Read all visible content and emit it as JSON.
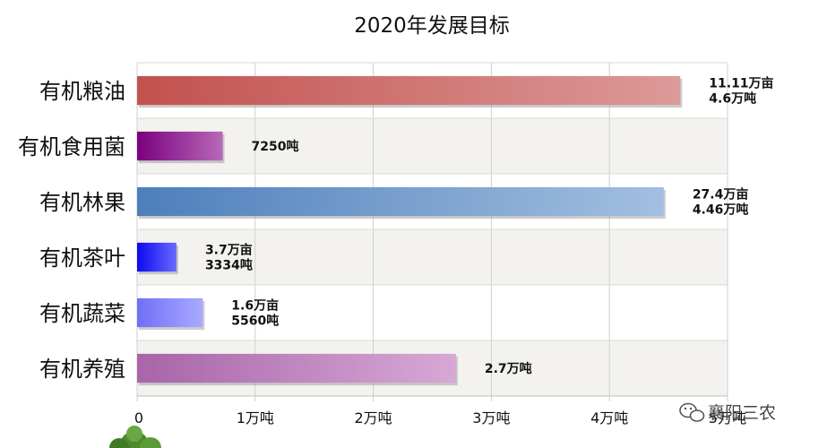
{
  "chart_data": {
    "type": "bar",
    "orientation": "horizontal",
    "title": "2020年发展目标",
    "categories": [
      "有机粮油",
      "有机食用菌",
      "有机林果",
      "有机茶叶",
      "有机蔬菜",
      "有机养殖"
    ],
    "values": [
      4.6,
      0.725,
      4.46,
      0.3334,
      0.556,
      2.7
    ],
    "data_labels": [
      [
        "11.11万亩",
        "4.6万吨"
      ],
      [
        "7250吨"
      ],
      [
        "27.4万亩",
        "4.46万吨"
      ],
      [
        "3.7万亩",
        "3334吨"
      ],
      [
        "1.6万亩",
        "5560吨"
      ],
      [
        "2.7万吨"
      ]
    ],
    "bar_colors": [
      [
        "#c2514f",
        "#dc9a98"
      ],
      [
        "#7a007e",
        "#b869b9"
      ],
      [
        "#4d7fbb",
        "#a3bfe0"
      ],
      [
        "#0a0af0",
        "#6a6aff"
      ],
      [
        "#6f6ff8",
        "#aaaaff"
      ],
      [
        "#a865a8",
        "#d7a8d6"
      ]
    ],
    "x_ticks": [
      "0",
      "1万吨",
      "2万吨",
      "3万吨",
      "4万吨",
      "5万吨"
    ],
    "xlim": [
      0,
      5
    ],
    "grid": true,
    "band_colors": [
      "#ffffff",
      "#f3f2ee"
    ]
  },
  "watermark": {
    "text": "襄阳三农",
    "icon": "wechat-icon"
  }
}
